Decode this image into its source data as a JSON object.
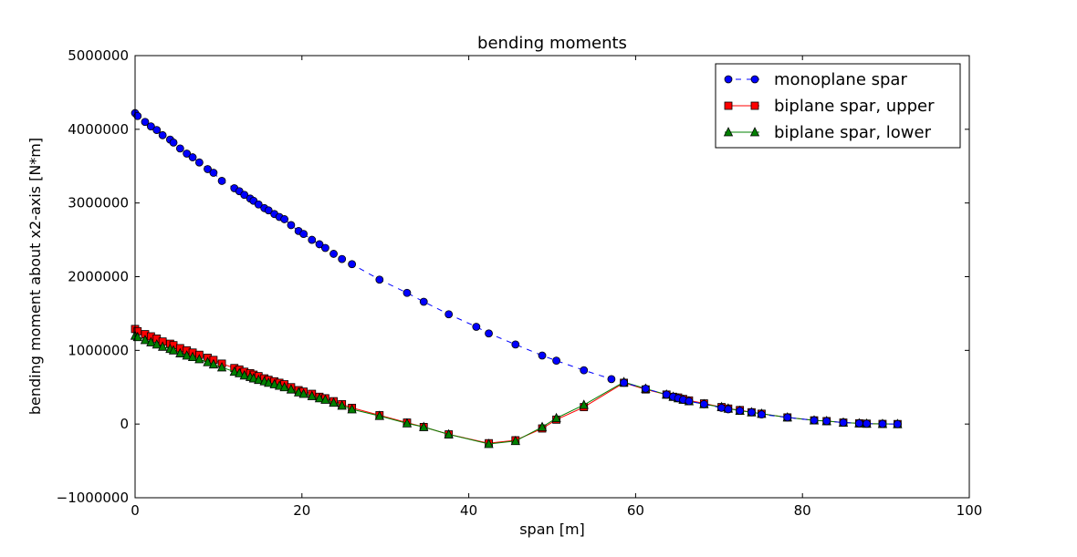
{
  "chart_data": {
    "type": "line",
    "title": "bending moments",
    "xlabel": "span [m]",
    "ylabel": "bending moment about x2-axis [N*m]",
    "xlim": [
      0,
      100
    ],
    "ylim": [
      -1000000,
      5000000
    ],
    "xticks": [
      0,
      20,
      40,
      60,
      80,
      100
    ],
    "yticks": [
      -1000000,
      0,
      1000000,
      2000000,
      3000000,
      4000000,
      5000000
    ],
    "xtick_labels": [
      "0",
      "20",
      "40",
      "60",
      "80",
      "100"
    ],
    "ytick_labels": [
      "−1000000",
      "0",
      "1000000",
      "2000000",
      "3000000",
      "4000000",
      "5000000"
    ],
    "grid": false,
    "legend_position": "top-right",
    "series": [
      {
        "name": "monoplane spar",
        "color": "#0000ff",
        "line_style": "dashed",
        "marker": "circle",
        "x": [
          0.0,
          0.3,
          1.2,
          1.9,
          2.6,
          3.3,
          4.2,
          4.6,
          5.4,
          6.2,
          6.9,
          7.7,
          8.7,
          9.4,
          10.4,
          11.9,
          12.5,
          13.1,
          13.8,
          14.2,
          14.8,
          15.5,
          16.0,
          16.7,
          17.3,
          17.9,
          18.7,
          19.6,
          20.2,
          21.2,
          22.1,
          22.8,
          23.8,
          24.8,
          26.0,
          29.3,
          32.6,
          34.6,
          37.6,
          40.9,
          42.4,
          45.6,
          48.8,
          50.5,
          53.8,
          57.1,
          58.6,
          61.2,
          63.7,
          64.5,
          65.1,
          65.7,
          66.4,
          68.2,
          70.3,
          71.1,
          72.5,
          73.9,
          75.1,
          78.2,
          81.4,
          82.9,
          84.9,
          86.8,
          87.7,
          89.6,
          91.4
        ],
        "y": [
          4220000,
          4180000,
          4100000,
          4040000,
          3990000,
          3920000,
          3860000,
          3820000,
          3740000,
          3670000,
          3620000,
          3550000,
          3460000,
          3410000,
          3300000,
          3200000,
          3160000,
          3110000,
          3060000,
          3030000,
          2980000,
          2930000,
          2900000,
          2850000,
          2810000,
          2780000,
          2700000,
          2620000,
          2580000,
          2500000,
          2440000,
          2390000,
          2310000,
          2240000,
          2170000,
          1960000,
          1780000,
          1660000,
          1490000,
          1320000,
          1230000,
          1080000,
          930000,
          860000,
          730000,
          610000,
          560000,
          480000,
          400000,
          370000,
          350000,
          330000,
          310000,
          270000,
          220000,
          200000,
          180000,
          160000,
          130000,
          90000,
          50000,
          40000,
          20000,
          10000,
          5000,
          2000,
          0
        ]
      },
      {
        "name": "biplane spar, upper",
        "color": "#ff0000",
        "line_style": "solid",
        "marker": "square",
        "x": [
          0.0,
          0.3,
          1.2,
          1.9,
          2.6,
          3.3,
          4.2,
          4.6,
          5.4,
          6.2,
          6.9,
          7.7,
          8.7,
          9.4,
          10.4,
          11.9,
          12.5,
          13.1,
          13.8,
          14.2,
          14.8,
          15.5,
          16.0,
          16.7,
          17.3,
          17.9,
          18.7,
          19.6,
          20.2,
          21.2,
          22.1,
          22.8,
          23.8,
          24.8,
          26.0,
          29.3,
          32.6,
          34.6,
          37.6,
          42.4,
          45.6,
          48.8,
          50.5,
          53.8,
          58.6,
          61.2,
          63.7,
          64.5,
          65.1,
          65.7,
          66.4,
          68.2,
          70.3,
          71.1,
          72.5,
          73.9,
          75.1,
          78.2,
          81.4,
          82.9,
          84.9,
          86.8,
          87.7,
          89.6,
          91.4
        ],
        "y": [
          1290000,
          1260000,
          1220000,
          1190000,
          1160000,
          1120000,
          1090000,
          1070000,
          1030000,
          1000000,
          970000,
          940000,
          900000,
          870000,
          820000,
          760000,
          740000,
          710000,
          690000,
          670000,
          650000,
          620000,
          600000,
          580000,
          560000,
          540000,
          500000,
          460000,
          440000,
          410000,
          370000,
          350000,
          310000,
          270000,
          220000,
          120000,
          20000,
          -40000,
          -140000,
          -260000,
          -220000,
          -60000,
          60000,
          230000,
          560000,
          470000,
          400000,
          370000,
          360000,
          340000,
          320000,
          280000,
          230000,
          210000,
          190000,
          160000,
          140000,
          90000,
          50000,
          40000,
          20000,
          10000,
          5000,
          2000,
          0
        ]
      },
      {
        "name": "biplane spar, lower",
        "color": "#008000",
        "line_style": "solid",
        "marker": "triangle",
        "x": [
          0.0,
          0.3,
          1.2,
          1.9,
          2.6,
          3.3,
          4.2,
          4.6,
          5.4,
          6.2,
          6.9,
          7.7,
          8.7,
          9.4,
          10.4,
          11.9,
          12.5,
          13.1,
          13.8,
          14.2,
          14.8,
          15.5,
          16.0,
          16.7,
          17.3,
          17.9,
          18.7,
          19.6,
          20.2,
          21.2,
          22.1,
          22.8,
          23.8,
          24.8,
          26.0,
          29.3,
          32.6,
          34.6,
          37.6,
          42.4,
          45.6,
          48.8,
          50.5,
          53.8,
          58.6,
          61.2,
          63.7,
          64.5,
          65.1,
          65.7,
          66.4,
          68.2,
          70.3,
          71.1,
          72.5,
          73.9,
          75.1,
          78.2,
          81.4,
          82.9,
          84.9,
          86.8,
          87.7,
          89.6,
          91.4
        ],
        "y": [
          1200000,
          1180000,
          1140000,
          1110000,
          1080000,
          1050000,
          1020000,
          1000000,
          960000,
          930000,
          910000,
          880000,
          840000,
          810000,
          770000,
          710000,
          690000,
          660000,
          640000,
          620000,
          600000,
          580000,
          560000,
          540000,
          520000,
          500000,
          470000,
          430000,
          410000,
          380000,
          350000,
          330000,
          290000,
          250000,
          200000,
          110000,
          10000,
          -40000,
          -140000,
          -270000,
          -230000,
          -40000,
          80000,
          260000,
          570000,
          480000,
          400000,
          370000,
          350000,
          330000,
          310000,
          270000,
          230000,
          210000,
          180000,
          160000,
          140000,
          90000,
          50000,
          40000,
          20000,
          10000,
          5000,
          2000,
          0
        ]
      }
    ]
  }
}
